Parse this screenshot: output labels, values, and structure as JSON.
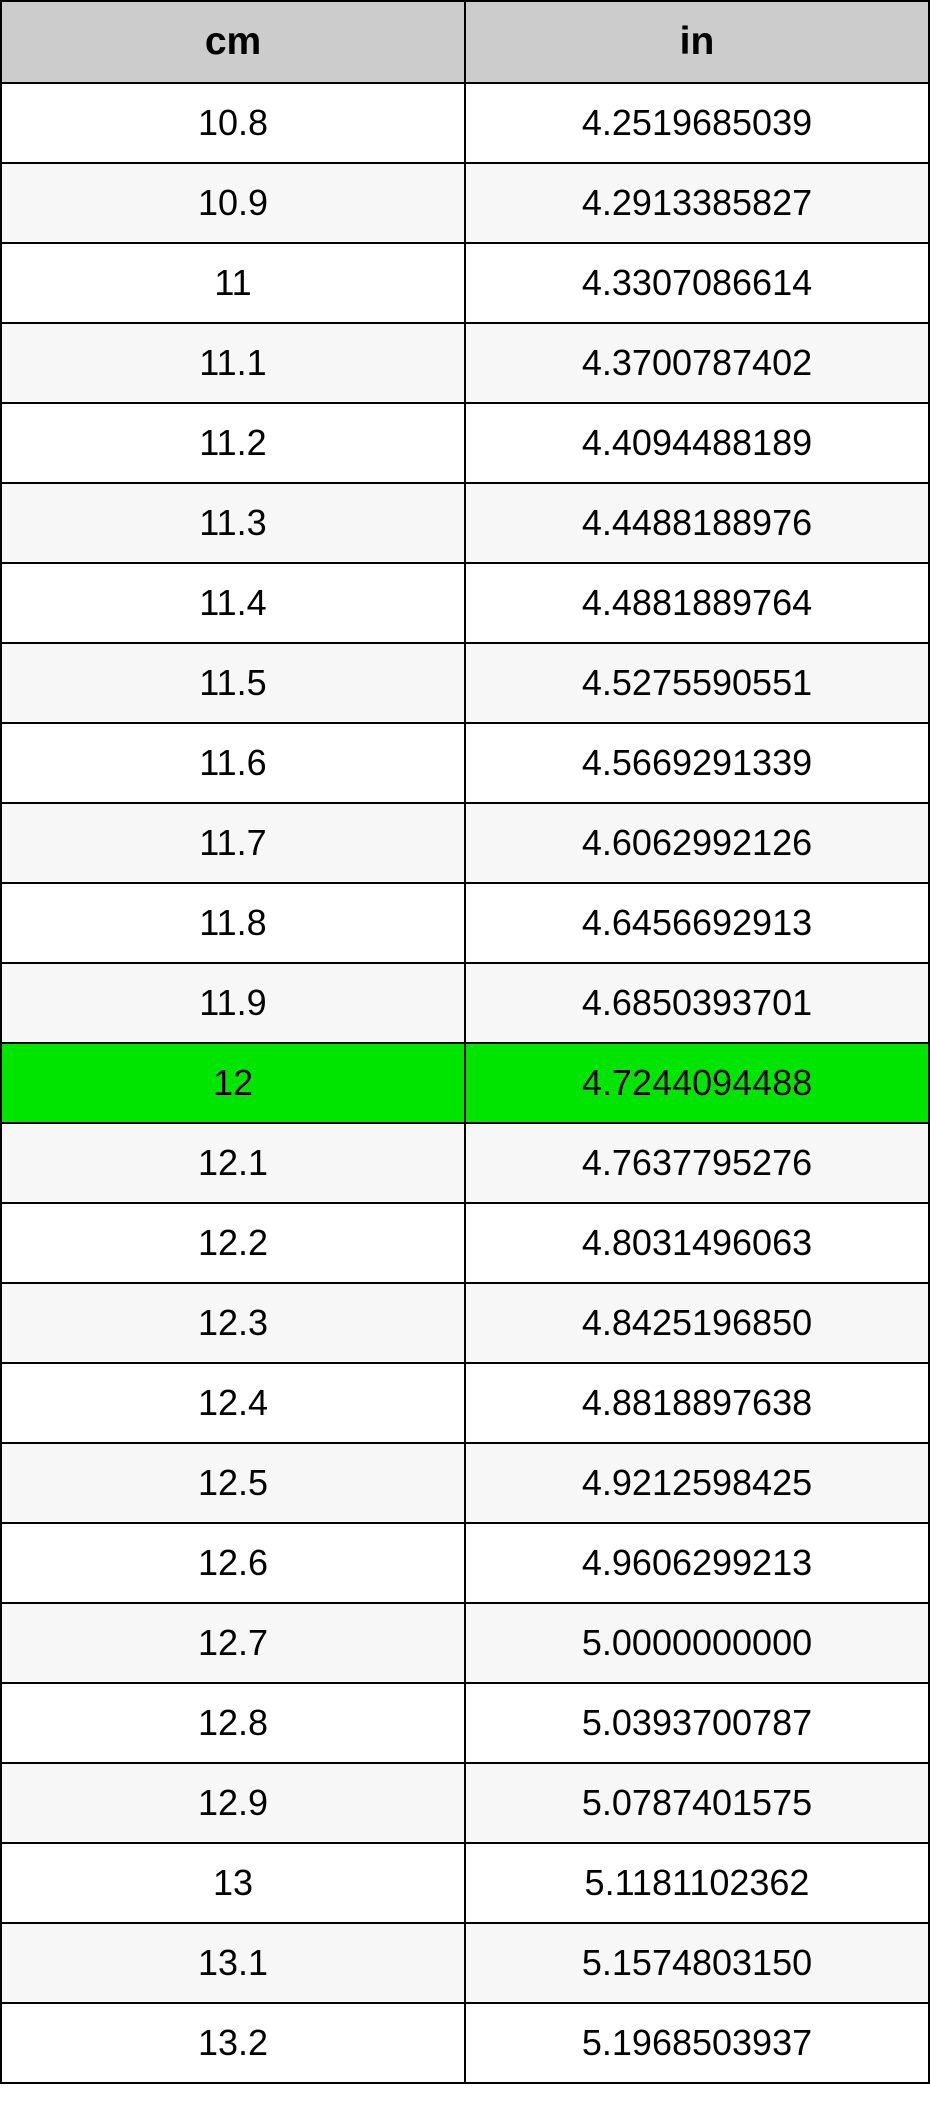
{
  "table": {
    "columns": [
      "cm",
      "in"
    ],
    "header_bg": "#cccccc",
    "header_fontsize": 39,
    "cell_fontsize": 36,
    "border_color": "#000000",
    "row_bg": "#ffffff",
    "row_alt_bg": "#f7f7f7",
    "highlight_bg": "#00e500",
    "highlight_index": 12,
    "rows": [
      {
        "cm": "10.8",
        "in": "4.2519685039"
      },
      {
        "cm": "10.9",
        "in": "4.2913385827"
      },
      {
        "cm": "11",
        "in": "4.3307086614"
      },
      {
        "cm": "11.1",
        "in": "4.3700787402"
      },
      {
        "cm": "11.2",
        "in": "4.4094488189"
      },
      {
        "cm": "11.3",
        "in": "4.4488188976"
      },
      {
        "cm": "11.4",
        "in": "4.4881889764"
      },
      {
        "cm": "11.5",
        "in": "4.5275590551"
      },
      {
        "cm": "11.6",
        "in": "4.5669291339"
      },
      {
        "cm": "11.7",
        "in": "4.6062992126"
      },
      {
        "cm": "11.8",
        "in": "4.6456692913"
      },
      {
        "cm": "11.9",
        "in": "4.6850393701"
      },
      {
        "cm": "12",
        "in": "4.7244094488"
      },
      {
        "cm": "12.1",
        "in": "4.7637795276"
      },
      {
        "cm": "12.2",
        "in": "4.8031496063"
      },
      {
        "cm": "12.3",
        "in": "4.8425196850"
      },
      {
        "cm": "12.4",
        "in": "4.8818897638"
      },
      {
        "cm": "12.5",
        "in": "4.9212598425"
      },
      {
        "cm": "12.6",
        "in": "4.9606299213"
      },
      {
        "cm": "12.7",
        "in": "5.0000000000"
      },
      {
        "cm": "12.8",
        "in": "5.0393700787"
      },
      {
        "cm": "12.9",
        "in": "5.0787401575"
      },
      {
        "cm": "13",
        "in": "5.1181102362"
      },
      {
        "cm": "13.1",
        "in": "5.1574803150"
      },
      {
        "cm": "13.2",
        "in": "5.1968503937"
      }
    ]
  }
}
